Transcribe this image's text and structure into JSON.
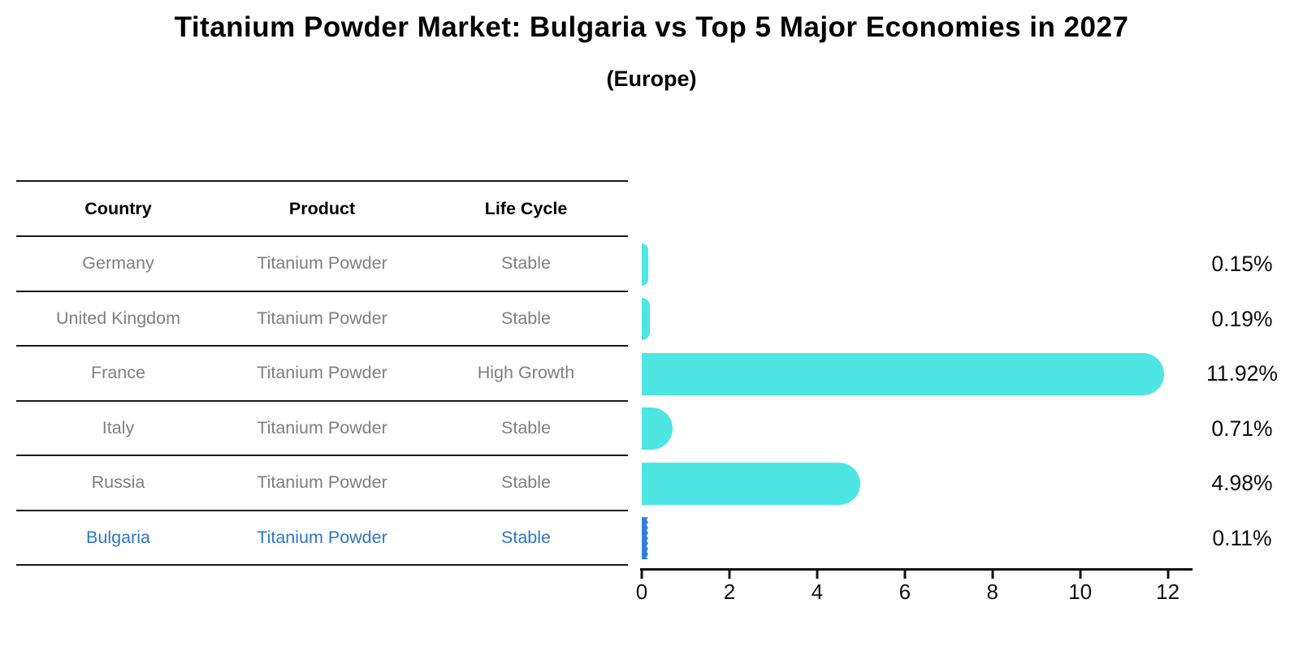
{
  "page": {
    "title": "Titanium Powder Market: Bulgaria vs Top 5 Major Economies in 2027",
    "subtitle": "(Europe)"
  },
  "table": {
    "columns": [
      "Country",
      "Product",
      "Life Cycle"
    ],
    "rows": [
      {
        "country": "Germany",
        "product": "Titanium Powder",
        "life_cycle": "Stable",
        "highlighted": false
      },
      {
        "country": "United Kingdom",
        "product": "Titanium Powder",
        "life_cycle": "Stable",
        "highlighted": false
      },
      {
        "country": "France",
        "product": "Titanium Powder",
        "life_cycle": "High Growth",
        "highlighted": false
      },
      {
        "country": "Italy",
        "product": "Titanium Powder",
        "life_cycle": "Stable",
        "highlighted": false
      },
      {
        "country": "Russia",
        "product": "Titanium Powder",
        "life_cycle": "Stable",
        "highlighted": false
      },
      {
        "country": "Bulgaria",
        "product": "Titanium Powder",
        "life_cycle": "Stable",
        "highlighted": true
      }
    ]
  },
  "chart_data": {
    "type": "bar",
    "orientation": "horizontal",
    "title": "Titanium Powder Market: Bulgaria vs Top 5 Major Economies in 2027",
    "subtitle": "(Europe)",
    "categories": [
      "Germany",
      "United Kingdom",
      "France",
      "Italy",
      "Russia",
      "Bulgaria"
    ],
    "values": [
      0.15,
      0.19,
      11.92,
      0.71,
      4.98,
      0.11
    ],
    "value_labels": [
      "0.15%",
      "0.19%",
      "11.92%",
      "0.71%",
      "4.98%",
      "0.11%"
    ],
    "x_ticks": [
      0,
      2,
      4,
      6,
      8,
      10,
      12
    ],
    "xlim": [
      0,
      12.6
    ],
    "grid": false,
    "legend": false,
    "bar_color": "#4de6e2",
    "highlight_bar_color": "#2e7fd9",
    "highlight_index": 5,
    "axis_color": "#111111"
  },
  "colors": {
    "row_text": "#7f7f7f",
    "header_text": "#111111",
    "highlight_text": "#2e78c8",
    "value_label_text": "#0d0d0d",
    "separator": "#1a1a1a"
  }
}
